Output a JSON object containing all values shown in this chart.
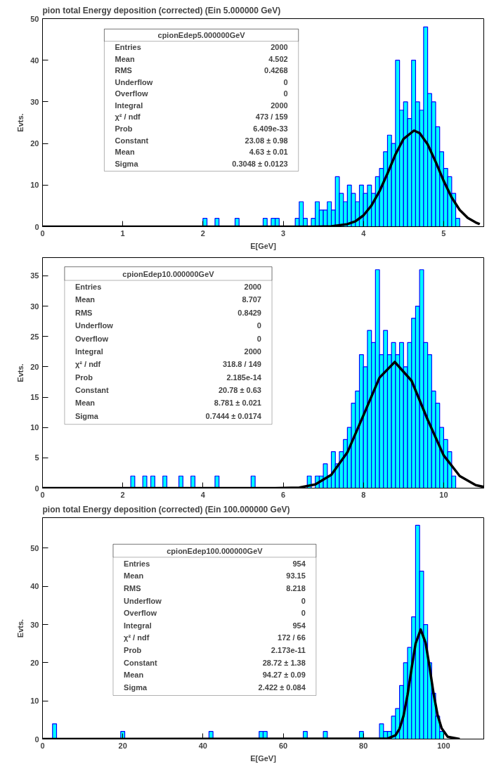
{
  "chart_data": [
    {
      "type": "histogram",
      "title": "pion total Energy deposition (corrected) (Ein 5.000000 GeV)",
      "xlabel": "E[GeV]",
      "ylabel": "Evts.",
      "xlim": [
        0,
        5.5
      ],
      "ylim": [
        0,
        50
      ],
      "xticks": [
        0,
        1,
        2,
        3,
        4,
        5
      ],
      "yticks": [
        0,
        10,
        20,
        30,
        40,
        50
      ],
      "grid": false,
      "annotations": [
        "cpionEdep5.000000GeV",
        "Entries",
        "2000",
        "Mean",
        "4.502",
        "RMS",
        "0.4268",
        "Underflow",
        "0",
        "Overflow",
        "0",
        "Integral",
        "2000",
        "χ² / ndf",
        "473 / 159",
        "Prob",
        "6.409e-33",
        "Constant",
        "23.08 ± 0.98",
        "Mean",
        "4.63 ± 0.01",
        "Sigma",
        "0.3048 ± 0.0123"
      ],
      "series": [
        {
          "color": "#00ffff",
          "bins": [
            2.0,
            2.05,
            2.1,
            2.15,
            2.2,
            2.25,
            2.3,
            2.35,
            2.4,
            2.45,
            2.5,
            2.55,
            2.6,
            2.65,
            2.7,
            2.75,
            2.8,
            2.85,
            2.9,
            2.95,
            3.0,
            3.05,
            3.1,
            3.15,
            3.2,
            3.25,
            3.3,
            3.35,
            3.4,
            3.45,
            3.5,
            3.55,
            3.6,
            3.65,
            3.7,
            3.75,
            3.8,
            3.85,
            3.9,
            3.95,
            4.0,
            4.05,
            4.1,
            4.15,
            4.2,
            4.25,
            4.3,
            4.35,
            4.4,
            4.45,
            4.5,
            4.55,
            4.6,
            4.65,
            4.7,
            4.75,
            4.8,
            4.85,
            4.9,
            4.95,
            5.0,
            5.05,
            5.1,
            5.15,
            5.2,
            5.25,
            5.3,
            5.35,
            5.4,
            5.45,
            5.5
          ],
          "values": [
            2,
            0,
            0,
            2,
            0,
            0,
            0,
            0,
            2,
            0,
            0,
            0,
            0,
            0,
            0,
            2,
            0,
            2,
            2,
            0,
            0,
            0,
            0,
            2,
            6,
            2,
            0,
            2,
            6,
            4,
            4,
            6,
            4,
            12,
            8,
            6,
            10,
            8,
            6,
            10,
            8,
            10,
            8,
            12,
            14,
            18,
            22,
            20,
            40,
            28,
            30,
            26,
            40,
            30,
            28,
            48,
            32,
            30,
            24,
            18,
            14,
            12,
            8,
            2,
            0,
            0,
            0,
            0,
            0,
            0
          ]
        },
        {
          "type": "line",
          "color": "#000000",
          "x": [
            0,
            3.4,
            3.6,
            3.8,
            3.9,
            4.0,
            4.1,
            4.2,
            4.3,
            4.4,
            4.5,
            4.63,
            4.7,
            4.8,
            4.9,
            5.0,
            5.1,
            5.2,
            5.3,
            5.4,
            5.45
          ],
          "values": [
            0,
            0,
            0.1,
            0.6,
            1.3,
            2.7,
            5.1,
            8.5,
            12.8,
            17.4,
            21.1,
            23.1,
            22.5,
            19.8,
            15.6,
            11.0,
            7.0,
            4.0,
            2.1,
            1.0,
            0.6
          ]
        }
      ]
    },
    {
      "type": "histogram",
      "ylabel": "Evts.",
      "xlim": [
        0,
        11
      ],
      "ylim": [
        0,
        38
      ],
      "xticks": [
        0,
        2,
        4,
        6,
        8,
        10
      ],
      "yticks": [
        0,
        5,
        10,
        15,
        20,
        25,
        30,
        35
      ],
      "grid": false,
      "annotations": [
        "cpionEdep10.000000GeV",
        "Entries",
        "2000",
        "Mean",
        "8.707",
        "RMS",
        "0.8429",
        "Underflow",
        "0",
        "Overflow",
        "0",
        "Integral",
        "2000",
        "χ² / ndf",
        "318.8 / 149",
        "Prob",
        "2.185e-14",
        "Constant",
        "20.78 ± 0.63",
        "Mean",
        "8.781 ± 0.021",
        "Sigma",
        "0.7444 ± 0.0174"
      ],
      "series": [
        {
          "color": "#00ffff",
          "bins": [
            2.2,
            2.3,
            2.4,
            2.5,
            2.6,
            2.7,
            2.8,
            2.9,
            3.0,
            3.1,
            3.2,
            3.3,
            3.4,
            3.5,
            3.6,
            3.7,
            3.8,
            3.9,
            4.0,
            4.1,
            4.2,
            4.3,
            4.4,
            4.5,
            4.6,
            4.7,
            4.8,
            4.9,
            5.0,
            5.1,
            5.2,
            5.3,
            5.4,
            5.5,
            5.6,
            5.7,
            5.8,
            5.9,
            6.0,
            6.1,
            6.2,
            6.3,
            6.4,
            6.5,
            6.6,
            6.7,
            6.8,
            6.9,
            7.0,
            7.1,
            7.2,
            7.3,
            7.4,
            7.5,
            7.6,
            7.7,
            7.8,
            7.9,
            8.0,
            8.1,
            8.2,
            8.3,
            8.4,
            8.5,
            8.6,
            8.7,
            8.8,
            8.9,
            9.0,
            9.1,
            9.2,
            9.3,
            9.4,
            9.5,
            9.6,
            9.7,
            9.8,
            9.9,
            10.0,
            10.1,
            10.2,
            10.3,
            10.4,
            10.5
          ],
          "values": [
            2,
            0,
            0,
            2,
            0,
            2,
            0,
            0,
            2,
            0,
            0,
            0,
            2,
            0,
            0,
            2,
            0,
            0,
            0,
            0,
            0,
            2,
            0,
            0,
            0,
            0,
            0,
            0,
            0,
            0,
            2,
            0,
            0,
            0,
            0,
            0,
            0,
            0,
            0,
            0,
            0,
            0,
            0,
            0,
            2,
            0,
            2,
            2,
            4,
            2,
            6,
            4,
            6,
            8,
            10,
            14,
            16,
            22,
            20,
            26,
            24,
            36,
            22,
            26,
            22,
            24,
            22,
            24,
            20,
            24,
            28,
            30,
            36,
            24,
            22,
            16,
            14,
            10,
            8,
            6,
            2,
            0,
            0
          ]
        },
        {
          "type": "line",
          "color": "#000000",
          "x": [
            0,
            5.8,
            6.4,
            6.8,
            7.2,
            7.6,
            8.0,
            8.4,
            8.781,
            9.2,
            9.6,
            10.0,
            10.4,
            10.8,
            11.0
          ],
          "values": [
            0,
            0,
            0.1,
            0.6,
            2.2,
            5.9,
            12.0,
            18.2,
            20.8,
            17.7,
            11.3,
            5.4,
            2.0,
            0.5,
            0.2
          ]
        }
      ]
    },
    {
      "type": "histogram",
      "title": "pion total Energy deposition (corrected) (Ein 100.000000 GeV)",
      "xlabel": "E[GeV]",
      "ylabel": "Evts.",
      "xlim": [
        0,
        110
      ],
      "ylim": [
        0,
        58
      ],
      "xticks": [
        0,
        20,
        40,
        60,
        80,
        100
      ],
      "yticks": [
        0,
        10,
        20,
        30,
        40,
        50
      ],
      "grid": false,
      "annotations": [
        "cpionEdep100.000000GeV",
        "Entries",
        "954",
        "Mean",
        "93.15",
        "RMS",
        "8.218",
        "Underflow",
        "0",
        "Overflow",
        "0",
        "Integral",
        "954",
        "χ² / ndf",
        "172 / 66",
        "Prob",
        "2.173e-11",
        "Constant",
        "28.72 ± 1.38",
        "Mean",
        "94.27 ± 0.09",
        "Sigma",
        "2.422 ± 0.084"
      ],
      "series": [
        {
          "color": "#00ffff",
          "bins": [
            2.5,
            3.5,
            19.5,
            20.5,
            41.5,
            42.5,
            54,
            55,
            56,
            65,
            66,
            70,
            71,
            79,
            80,
            84,
            85,
            86,
            87,
            88,
            89,
            90,
            91,
            92,
            93,
            94,
            95,
            96,
            97,
            98,
            99,
            100
          ],
          "values": [
            4,
            0,
            2,
            0,
            2,
            0,
            2,
            2,
            0,
            2,
            0,
            2,
            0,
            2,
            0,
            4,
            2,
            2,
            6,
            8,
            14,
            20,
            24,
            32,
            56,
            44,
            30,
            20,
            12,
            6,
            2
          ]
        },
        {
          "type": "line",
          "color": "#000000",
          "x": [
            0,
            86,
            88,
            89,
            90,
            91,
            92,
            93,
            94.27,
            95.5,
            96.5,
            97.5,
            98.5,
            99.5,
            101,
            104
          ],
          "values": [
            0,
            0.1,
            1.0,
            2.7,
            6.1,
            11.6,
            18.5,
            25.0,
            28.7,
            25.2,
            18.8,
            11.8,
            6.2,
            2.8,
            0.6,
            0
          ]
        }
      ]
    }
  ]
}
